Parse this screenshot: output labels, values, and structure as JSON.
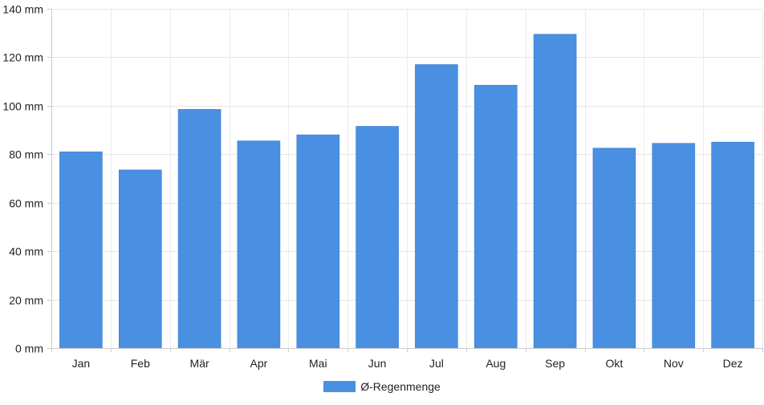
{
  "chart_data": {
    "type": "bar",
    "title": "",
    "xlabel": "",
    "ylabel": "",
    "categories": [
      "Jan",
      "Feb",
      "Mär",
      "Apr",
      "Mai",
      "Jun",
      "Jul",
      "Aug",
      "Sep",
      "Okt",
      "Nov",
      "Dez"
    ],
    "series": [
      {
        "name": "Ø-Regenmenge",
        "values": [
          81,
          73.5,
          98.5,
          85.5,
          88,
          91.5,
          117,
          108.5,
          129.5,
          82.5,
          84.5,
          85
        ],
        "color": "#4a90e2"
      }
    ],
    "ylim": [
      0,
      140
    ],
    "yticks": [
      0,
      20,
      40,
      60,
      80,
      100,
      120,
      140
    ],
    "ytick_format": "{v} mm",
    "grid": true,
    "legend_position": "bottom-center"
  },
  "legend": {
    "label": "Ø-Regenmenge",
    "color": "#4a90e2"
  }
}
